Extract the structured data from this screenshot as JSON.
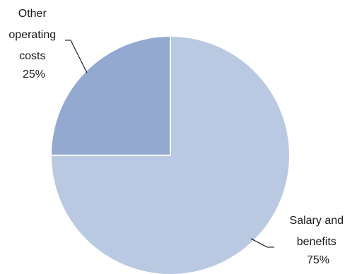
{
  "chart_data": {
    "type": "pie",
    "title": "",
    "slices": [
      {
        "label_lines": [
          "Other",
          "operating",
          "costs"
        ],
        "value": 25,
        "value_label": "25%",
        "color": "#94a9d0"
      },
      {
        "label_lines": [
          "Salary and",
          "benefits"
        ],
        "value": 75,
        "value_label": "75%",
        "color": "#bac9e2"
      }
    ],
    "legend": "none",
    "start_angle_deg": 90,
    "direction": "counterclockwise"
  }
}
